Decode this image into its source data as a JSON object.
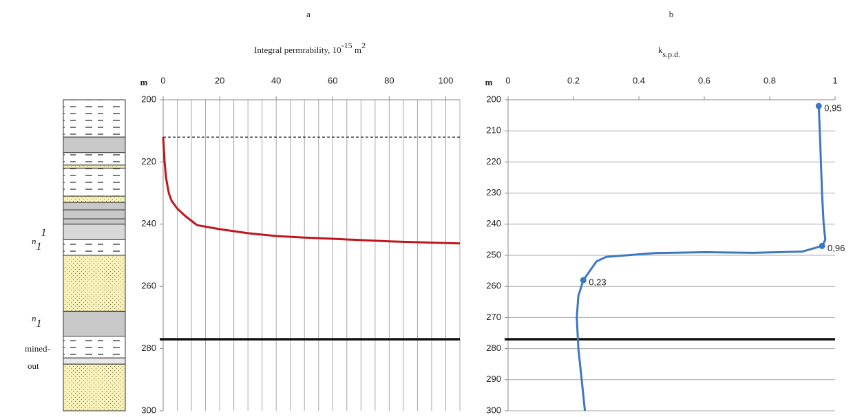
{
  "lithology": {
    "upper_unit": {
      "name": "n",
      "sub": "1",
      "sup": "1"
    },
    "lower_unit": {
      "name": "n",
      "sub": "1",
      "note": [
        "mined-",
        "out"
      ]
    }
  },
  "chart_data": [
    {
      "type": "line",
      "panel": "a",
      "title": "Integral permrability, 10",
      "title_sup": "-15",
      "title_unit": " m",
      "title_unit_sup": "2",
      "ylabel": "m",
      "xlim": [
        0,
        105
      ],
      "xticks": [
        0,
        20,
        40,
        60,
        80,
        100
      ],
      "xgrid": [
        0,
        5,
        10,
        15,
        20,
        25,
        30,
        35,
        40,
        45,
        50,
        55,
        60,
        65,
        70,
        75,
        80,
        85,
        90,
        95,
        100,
        105
      ],
      "ylim": [
        200,
        300
      ],
      "yticks": [
        200,
        220,
        240,
        260,
        280,
        300
      ],
      "y_inverted": true,
      "ygrid": false,
      "series": [
        {
          "color": "#c0141e",
          "x": [
            0,
            0.5,
            1,
            2,
            3,
            5,
            8,
            12,
            20,
            30,
            40,
            50,
            60,
            70,
            80,
            90,
            105
          ],
          "y": [
            212,
            220,
            225,
            230,
            232.5,
            235,
            237.5,
            240.3,
            241.6,
            242.9,
            243.8,
            244.3,
            244.7,
            245.1,
            245.5,
            245.8,
            246.2
          ]
        }
      ],
      "reference_lines": [
        {
          "y": 212,
          "style": "dashed"
        },
        {
          "y": 277,
          "style": "solid"
        }
      ]
    },
    {
      "type": "line",
      "panel": "b",
      "title": "k",
      "title_sub": "s.p.d.",
      "ylabel": "m",
      "xlim": [
        0,
        1
      ],
      "xticks": [
        0,
        0.2,
        0.4,
        0.6,
        0.8,
        1
      ],
      "ylim": [
        200,
        300
      ],
      "yticks": [
        200,
        210,
        220,
        230,
        240,
        250,
        260,
        270,
        280,
        290,
        300
      ],
      "y_inverted": true,
      "ygrid": true,
      "series": [
        {
          "color": "#3b78c2",
          "x": [
            0.95,
            0.955,
            0.96,
            0.965,
            0.97,
            0.96,
            0.9,
            0.75,
            0.6,
            0.45,
            0.3,
            0.27,
            0.25,
            0.23,
            0.215,
            0.21,
            0.215,
            0.225,
            0.235
          ],
          "y": [
            202,
            215,
            230,
            240,
            245,
            247,
            248.8,
            249.2,
            249,
            249.3,
            250.5,
            252,
            255,
            258,
            263,
            270,
            280,
            290,
            300
          ],
          "markers": {
            "x": [
              0.95,
              0.96,
              0.23
            ],
            "y": [
              202,
              247,
              258
            ],
            "value_labels": [
              "0,95",
              "0,96",
              "0,23"
            ]
          }
        }
      ],
      "reference_lines": [
        {
          "y": 277,
          "style": "solid"
        }
      ]
    }
  ]
}
